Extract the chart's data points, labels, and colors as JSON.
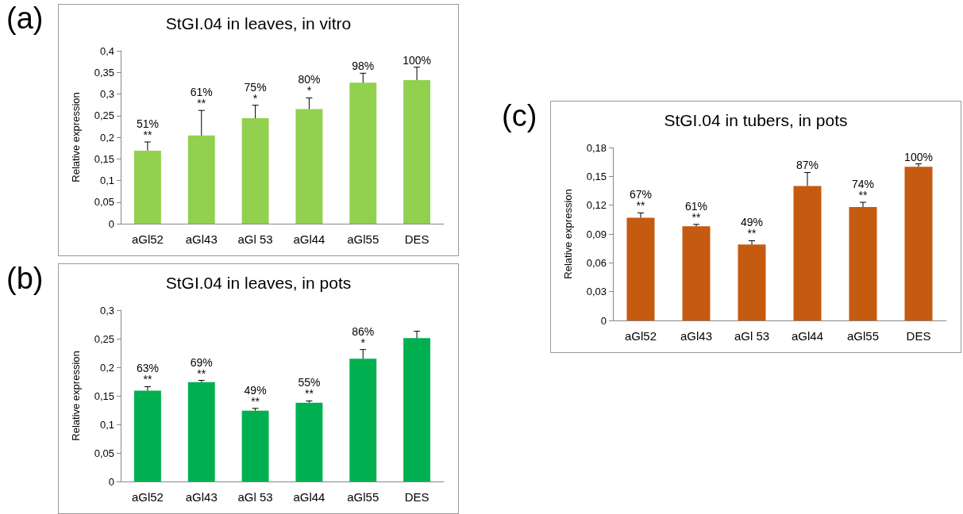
{
  "chart_data": [
    {
      "type": "bar",
      "title": "StGI.04 in leaves, in vitro",
      "ylabel": "Relative expression",
      "annotations": [
        "(a)",
        {
          "text": "51%\n**",
          "x": "aGl52",
          "y": 0.189
        },
        {
          "text": "61%\n**",
          "x": "aGl43",
          "y": 0.262
        },
        {
          "text": "75%\n*",
          "x": "aGl 53",
          "y": 0.274
        },
        {
          "text": "80%\n*",
          "x": "aGl44",
          "y": 0.291
        },
        {
          "text": "98%",
          "x": "aGl55",
          "y": 0.348
        },
        {
          "text": "100%",
          "x": "DES",
          "y": 0.362
        }
      ],
      "categories": [
        "aGl52",
        "aGl43",
        "aGl 53",
        "aGl44",
        "aGl55",
        "DES"
      ],
      "values": [
        0.169,
        0.204,
        0.244,
        0.265,
        0.326,
        0.332
      ],
      "errors": [
        [
          0.169,
          0.189
        ],
        [
          0.204,
          0.262
        ],
        [
          0.244,
          0.274
        ],
        [
          0.265,
          0.291
        ],
        [
          0.326,
          0.348
        ],
        [
          0.332,
          0.362
        ]
      ],
      "color": "#92d050",
      "ylim": [
        0,
        0.4
      ],
      "yticks": [
        {
          "value": 0,
          "label": "0"
        },
        {
          "value": 0.05,
          "label": "0,05"
        },
        {
          "value": 0.1,
          "label": "0,1"
        },
        {
          "value": 0.15,
          "label": "0,15"
        },
        {
          "value": 0.2,
          "label": "0,2"
        },
        {
          "value": 0.25,
          "label": "0,25"
        },
        {
          "value": 0.3,
          "label": "0,3"
        },
        {
          "value": 0.35,
          "label": "0,35"
        },
        {
          "value": 0.4,
          "label": "0,4"
        }
      ],
      "grid": false
    },
    {
      "type": "bar",
      "title": "StGI.04 in leaves, in pots",
      "ylabel": "Relative expression",
      "annotations": [
        "(b)",
        {
          "text": "63%\n**",
          "x": "aGl52",
          "y": 0.166
        },
        {
          "text": "69%\n**",
          "x": "aGl43",
          "y": 0.177
        },
        {
          "text": "49%\n**",
          "x": "aGl 53",
          "y": 0.128
        },
        {
          "text": "55%\n**",
          "x": "aGl44",
          "y": 0.141
        },
        {
          "text": "86%\n*",
          "x": "aGl55",
          "y": 0.231
        }
      ],
      "categories": [
        "aGl52",
        "aGl43",
        "aGl 53",
        "aGl44",
        "aGl55",
        "DES"
      ],
      "values": [
        0.159,
        0.174,
        0.124,
        0.138,
        0.215,
        0.251
      ],
      "errors": [
        [
          0.159,
          0.166
        ],
        [
          0.174,
          0.177
        ],
        [
          0.124,
          0.128
        ],
        [
          0.138,
          0.141
        ],
        [
          0.215,
          0.231
        ],
        [
          0.251,
          0.263
        ]
      ],
      "color": "#00b050",
      "ylim": [
        0,
        0.3
      ],
      "yticks": [
        {
          "value": 0,
          "label": "0"
        },
        {
          "value": 0.05,
          "label": "0,05"
        },
        {
          "value": 0.1,
          "label": "0,1"
        },
        {
          "value": 0.15,
          "label": "0,15"
        },
        {
          "value": 0.2,
          "label": "0,2"
        },
        {
          "value": 0.25,
          "label": "0,25"
        },
        {
          "value": 0.3,
          "label": "0,3"
        }
      ],
      "grid": false
    },
    {
      "type": "bar",
      "title": "StGI.04 in tubers, in pots",
      "ylabel": "Relative expression",
      "annotations": [
        "(c)",
        {
          "text": "67%\n**",
          "x": "aGl52",
          "y": 0.112
        },
        {
          "text": "61%\n**",
          "x": "aGl43",
          "y": 0.1
        },
        {
          "text": "49%\n**",
          "x": "aGl 53",
          "y": 0.083
        },
        {
          "text": "87%",
          "x": "aGl44",
          "y": 0.154
        },
        {
          "text": "74%\n**",
          "x": "aGl55",
          "y": 0.123
        },
        {
          "text": "100%",
          "x": "DES",
          "y": 0.163
        }
      ],
      "categories": [
        "aGl52",
        "aGl43",
        "aGl 53",
        "aGl44",
        "aGl55",
        "DES"
      ],
      "values": [
        0.107,
        0.098,
        0.079,
        0.14,
        0.118,
        0.16
      ],
      "errors": [
        [
          0.107,
          0.112
        ],
        [
          0.098,
          0.1
        ],
        [
          0.079,
          0.083
        ],
        [
          0.14,
          0.154
        ],
        [
          0.118,
          0.123
        ],
        [
          0.16,
          0.163
        ]
      ],
      "color": "#c55a11",
      "ylim": [
        0,
        0.18
      ],
      "yticks": [
        {
          "value": 0,
          "label": "0"
        },
        {
          "value": 0.03,
          "label": "0,03"
        },
        {
          "value": 0.06,
          "label": "0,06"
        },
        {
          "value": 0.09,
          "label": "0,09"
        },
        {
          "value": 0.12,
          "label": "0,12"
        },
        {
          "value": 0.15,
          "label": "0,15"
        },
        {
          "value": 0.18,
          "label": "0,18"
        }
      ],
      "grid": false
    }
  ]
}
